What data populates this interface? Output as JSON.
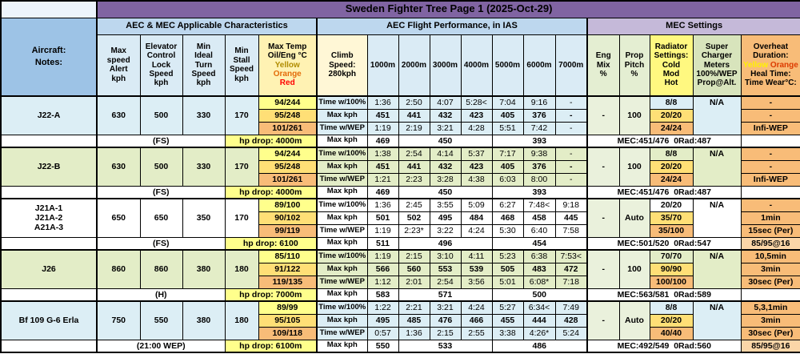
{
  "title": "Sweden Fighter Tree Page 1 (2025-Oct-29)",
  "header": {
    "aircraft_label": "Aircraft:\nNotes:",
    "groups": [
      "AEC & MEC Applicable Characteristics",
      "AEC Flight Performance, in IAS",
      "MEC Settings"
    ],
    "columns": {
      "max_speed": "Max\nspeed\nAlert\nkph",
      "elevator": "Elevator\nControl\nLock\nSpeed\nkph",
      "min_ideal": "Min\nIdeal\nTurn\nSpeed\nkph",
      "min_stall": "Min\nStall\nSpeed\nkph",
      "max_temp": {
        "title": "Max Temp\nOil/Eng °C",
        "yellow": "Yellow",
        "orange": "Orange",
        "red": "Red"
      },
      "climb": "Climb\nSpeed:\n280kph",
      "eng_mix": "Eng\nMix\n%",
      "prop_pitch": "Prop\nPitch\n%",
      "radiator": "Radiator\nSettings:\nCold\nMod\nHot",
      "super_charger": "Super\nCharger\nMeters\n100%/WEP\nProp@Alt.",
      "overheat": {
        "title": "Overheat\nDuration:",
        "yellow": "Yellow",
        "orange": "Orange",
        "tail": "Heal Time:\nTime Wear°C:"
      }
    },
    "altitudes": [
      "1000m",
      "2000m",
      "3000m",
      "4000m",
      "5000m",
      "6000m",
      "7000m"
    ]
  },
  "blocks": [
    {
      "aircraft": "J22-A",
      "tone": "blue",
      "stats": [
        "630",
        "500",
        "330",
        "170"
      ],
      "temps": [
        "94/244",
        "95/248",
        "101/261"
      ],
      "eng_mix": "-",
      "prop_pitch": "100",
      "super_charger": "N/A",
      "rows": [
        {
          "label": "Time w/100%",
          "bold": false,
          "values": [
            "1:36",
            "2:50",
            "4:07",
            "5:28<",
            "7:04",
            "9:16",
            "-"
          ],
          "radiator": "8/8",
          "overheat": "-"
        },
        {
          "label": "Max kph",
          "bold": true,
          "values": [
            "451",
            "441",
            "432",
            "423",
            "405",
            "376",
            "-"
          ],
          "radiator": "20/20",
          "overheat": "-"
        },
        {
          "label": "Time w/WEP",
          "bold": false,
          "values": [
            "1:19",
            "2:19",
            "3:21",
            "4:28",
            "5:51",
            "7:42",
            "-"
          ],
          "radiator": "24/24",
          "overheat": "Infi-WEP"
        }
      ],
      "footer": {
        "note": "(FS)",
        "hp_drop": "hp drop: 4000m",
        "label": "Max kph",
        "values": [
          "469",
          "450",
          "393"
        ],
        "mec": "MEC:451/476  0Rad:487",
        "overheat": ""
      }
    },
    {
      "aircraft": "J22-B",
      "tone": "green",
      "stats": [
        "630",
        "500",
        "330",
        "170"
      ],
      "temps": [
        "94/244",
        "95/248",
        "101/261"
      ],
      "eng_mix": "-",
      "prop_pitch": "100",
      "super_charger": "N/A",
      "rows": [
        {
          "label": "Time w/100%",
          "bold": false,
          "values": [
            "1:38",
            "2:54",
            "4:14",
            "5:37",
            "7:17",
            "9:38",
            "-"
          ],
          "radiator": "8/8",
          "overheat": "-"
        },
        {
          "label": "Max kph",
          "bold": true,
          "values": [
            "451",
            "441",
            "432",
            "423",
            "405",
            "376",
            "-"
          ],
          "radiator": "20/20",
          "overheat": "-"
        },
        {
          "label": "Time w/WEP",
          "bold": false,
          "values": [
            "1:21",
            "2:23",
            "3:28",
            "4:38",
            "6:03",
            "8:00",
            "-"
          ],
          "radiator": "24/24",
          "overheat": "Infi-WEP"
        }
      ],
      "footer": {
        "note": "(FS)",
        "hp_drop": "hp drop: 4000m",
        "label": "Max kph",
        "values": [
          "469",
          "450",
          "393"
        ],
        "mec": "MEC:451/476  0Rad:487",
        "overheat": ""
      }
    },
    {
      "aircraft": "J21A-1\nJ21A-2\nA21A-3",
      "tone": "white",
      "stats": [
        "650",
        "650",
        "350",
        "170"
      ],
      "temps": [
        "89/100",
        "90/102",
        "99/119"
      ],
      "eng_mix": "-",
      "prop_pitch": "Auto",
      "super_charger": "N/A",
      "rows": [
        {
          "label": "Time w/100%",
          "bold": false,
          "values": [
            "1:36",
            "2:45",
            "3:55",
            "5:09",
            "6:27",
            "7:48<",
            "9:18"
          ],
          "radiator": "20/20",
          "overheat": "-"
        },
        {
          "label": "Max kph",
          "bold": true,
          "values": [
            "501",
            "502",
            "495",
            "484",
            "468",
            "458",
            "445"
          ],
          "radiator": "35/70",
          "overheat": "1min"
        },
        {
          "label": "Time w/WEP",
          "bold": false,
          "values": [
            "1:19",
            "2:23*",
            "3:22",
            "4:24",
            "5:30",
            "6:40",
            "7:58"
          ],
          "radiator": "35/100",
          "overheat": "15sec (Per)"
        }
      ],
      "footer": {
        "note": "(FS)",
        "hp_drop": "hp drop: 6100",
        "label": "Max kph",
        "values": [
          "511",
          "496",
          "454"
        ],
        "mec": "MEC:501/520  0Rad:547",
        "overheat": "85/95@16"
      }
    },
    {
      "aircraft": "J26",
      "tone": "green",
      "stats": [
        "860",
        "860",
        "380",
        "180"
      ],
      "temps": [
        "85/110",
        "91/122",
        "119/135"
      ],
      "eng_mix": "-",
      "prop_pitch": "100",
      "super_charger": "N/A",
      "rows": [
        {
          "label": "Time w/100%",
          "bold": false,
          "values": [
            "1:19",
            "2:15",
            "3:10",
            "4:11",
            "5:23",
            "6:38",
            "7:53<"
          ],
          "radiator": "70/70",
          "overheat": "10,5min"
        },
        {
          "label": "Max kph",
          "bold": true,
          "values": [
            "566",
            "560",
            "553",
            "539",
            "505",
            "483",
            "472"
          ],
          "radiator": "90/90",
          "overheat": "3min"
        },
        {
          "label": "Time w/WEP",
          "bold": false,
          "values": [
            "1:12",
            "2:01",
            "2:54",
            "3:56",
            "5:01",
            "6:08*",
            "7:18"
          ],
          "radiator": "100/100",
          "overheat": "30sec (Per)"
        }
      ],
      "footer": {
        "note": "(H)",
        "hp_drop": "hp drop: 7000m",
        "label": "Max kph",
        "values": [
          "583",
          "571",
          "500"
        ],
        "mec": "MEC:563/581  0Rad:589",
        "overheat": ""
      }
    },
    {
      "aircraft": "Bf 109 G-6 Erla",
      "tone": "blue",
      "stats": [
        "750",
        "550",
        "380",
        "180"
      ],
      "temps": [
        "89/99",
        "95/105",
        "109/118"
      ],
      "eng_mix": "-",
      "prop_pitch": "Auto",
      "super_charger": "N/A",
      "rows": [
        {
          "label": "Time w/100%",
          "bold": false,
          "values": [
            "1:22",
            "2:21",
            "3:21",
            "4:24",
            "5:27",
            "6:34<",
            "7:49"
          ],
          "radiator": "8/8",
          "overheat": "5,3,1min"
        },
        {
          "label": "Max kph",
          "bold": true,
          "values": [
            "495",
            "485",
            "476",
            "466",
            "455",
            "444",
            "428"
          ],
          "radiator": "20/20",
          "overheat": "3min"
        },
        {
          "label": "Time w/WEP",
          "bold": false,
          "values": [
            "0:57",
            "1:36",
            "2:15",
            "2:55",
            "3:38",
            "4:26*",
            "5:24"
          ],
          "radiator": "40/40",
          "overheat": "30sec (Per)"
        }
      ],
      "footer": {
        "note": "(21:00 WEP)",
        "hp_drop": "hp drop: 6100m",
        "label": "Max kph",
        "values": [
          "550",
          "533",
          "486"
        ],
        "mec": "MEC:492/549  0Rad:560",
        "overheat": "85/95@16"
      }
    }
  ]
}
